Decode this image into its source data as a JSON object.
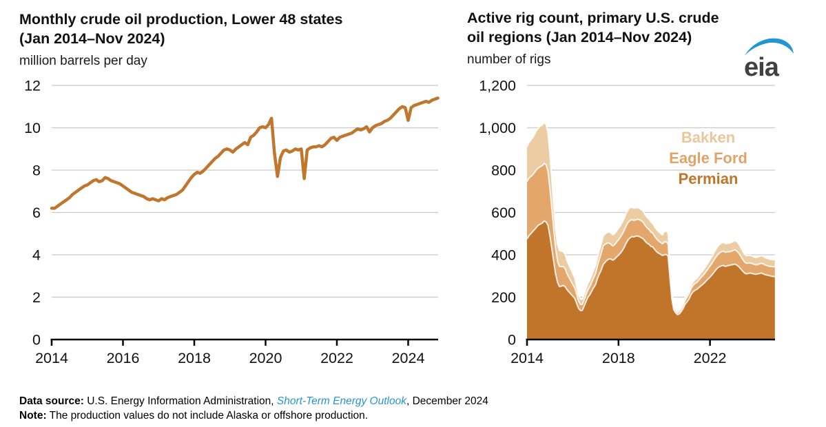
{
  "branding": {
    "logo_text": "eia",
    "logo_text_color": "#414042",
    "swoosh_color": "#2196D3"
  },
  "footer": {
    "source_label": "Data source:",
    "source_body": " U.S. Energy Information Administration, ",
    "source_link": "Short-Term Energy Outlook",
    "source_tail": ", December 2024",
    "link_color": "#2795CE",
    "note_label": "Note:",
    "note_body": " The production values do not include Alaska or offshore production."
  },
  "chart_data": [
    {
      "type": "line",
      "title_line1": "Monthly crude oil production, Lower 48 states",
      "title_line2": "(Jan 2014–Nov 2024)",
      "unit_label": "million barrels per day",
      "x_start_year": 2014,
      "x_end_label": "Nov 2024",
      "xtick_years": [
        2014,
        2016,
        2018,
        2020,
        2022,
        2024
      ],
      "ylim": [
        0,
        12
      ],
      "ytick_values": [
        0,
        2,
        4,
        6,
        8,
        10,
        12
      ],
      "ytick_labels": [
        "0",
        "2",
        "4",
        "6",
        "8",
        "10",
        "12"
      ],
      "grid_color": "#C9C9C9",
      "line_color": "#C0762C",
      "values": [
        6.2,
        6.2,
        6.3,
        6.4,
        6.5,
        6.6,
        6.7,
        6.85,
        6.95,
        7.05,
        7.15,
        7.25,
        7.3,
        7.4,
        7.5,
        7.55,
        7.45,
        7.5,
        7.65,
        7.6,
        7.5,
        7.45,
        7.4,
        7.35,
        7.25,
        7.15,
        7.05,
        6.95,
        6.9,
        6.85,
        6.8,
        6.75,
        6.65,
        6.6,
        6.65,
        6.6,
        6.55,
        6.65,
        6.6,
        6.7,
        6.75,
        6.8,
        6.85,
        6.95,
        7.05,
        7.25,
        7.45,
        7.65,
        7.8,
        7.9,
        7.85,
        7.95,
        8.1,
        8.25,
        8.4,
        8.55,
        8.65,
        8.8,
        8.95,
        9.0,
        8.95,
        8.85,
        9.0,
        9.1,
        9.2,
        9.3,
        9.2,
        9.55,
        9.65,
        9.8,
        10.0,
        10.05,
        10.0,
        10.15,
        10.45,
        8.8,
        7.7,
        8.6,
        8.9,
        8.95,
        8.85,
        8.9,
        9.0,
        8.95,
        9.0,
        7.6,
        8.95,
        9.05,
        9.1,
        9.1,
        9.15,
        9.1,
        9.2,
        9.35,
        9.5,
        9.55,
        9.4,
        9.55,
        9.6,
        9.65,
        9.7,
        9.75,
        9.85,
        9.95,
        9.9,
        9.95,
        10.05,
        9.8,
        10.0,
        10.1,
        10.15,
        10.2,
        10.3,
        10.35,
        10.45,
        10.6,
        10.75,
        10.9,
        11.0,
        10.95,
        10.35,
        10.95,
        11.05,
        11.1,
        11.15,
        11.2,
        11.25,
        11.2,
        11.3,
        11.35,
        11.4
      ]
    },
    {
      "type": "stacked_area",
      "title_line1": "Active rig count, primary U.S. crude",
      "title_line2": "oil regions (Jan 2014–Nov 2024)",
      "unit_label": "number of rigs",
      "x_start_year": 2014,
      "x_end_label": "Nov 2024",
      "xtick_years": [
        2014,
        2018,
        2022
      ],
      "ylim": [
        0,
        1200
      ],
      "ytick_values": [
        0,
        200,
        400,
        600,
        800,
        1000,
        1200
      ],
      "ytick_labels": [
        "0",
        "200",
        "400",
        "600",
        "800",
        "1,000",
        "1,200"
      ],
      "grid_color": "#C9C9C9",
      "series": [
        {
          "name": "Permian",
          "color": "#C0752B",
          "values": [
            475,
            490,
            500,
            510,
            520,
            530,
            540,
            545,
            550,
            560,
            555,
            540,
            490,
            430,
            370,
            310,
            270,
            250,
            252,
            255,
            250,
            235,
            225,
            215,
            205,
            195,
            172,
            148,
            137,
            138,
            158,
            180,
            200,
            212,
            230,
            246,
            260,
            290,
            310,
            330,
            355,
            365,
            375,
            380,
            380,
            375,
            380,
            390,
            398,
            408,
            420,
            435,
            455,
            470,
            480,
            486,
            485,
            488,
            489,
            486,
            481,
            475,
            464,
            455,
            450,
            440,
            437,
            425,
            415,
            408,
            403,
            397,
            400,
            402,
            395,
            290,
            190,
            140,
            126,
            117,
            122,
            133,
            148,
            167,
            179,
            191,
            211,
            224,
            232,
            236,
            244,
            252,
            259,
            267,
            277,
            286,
            295,
            305,
            316,
            328,
            338,
            344,
            348,
            350,
            345,
            348,
            350,
            352,
            354,
            356,
            352,
            345,
            335,
            325,
            315,
            310,
            312,
            314,
            312,
            310,
            308,
            310,
            312,
            314,
            310,
            306,
            304,
            302,
            300,
            298,
            297
          ]
        },
        {
          "name": "Eagle Ford",
          "color": "#E3A76B",
          "values": [
            270,
            272,
            270,
            268,
            270,
            272,
            270,
            272,
            270,
            272,
            270,
            255,
            225,
            190,
            150,
            120,
            100,
            95,
            92,
            90,
            85,
            75,
            68,
            62,
            55,
            50,
            45,
            35,
            29,
            28,
            30,
            33,
            36,
            38,
            42,
            46,
            52,
            60,
            70,
            80,
            88,
            85,
            80,
            76,
            70,
            67,
            68,
            70,
            73,
            76,
            78,
            80,
            82,
            83,
            82,
            80,
            78,
            77,
            79,
            80,
            80,
            78,
            75,
            72,
            70,
            68,
            65,
            62,
            60,
            58,
            56,
            55,
            60,
            60,
            58,
            35,
            20,
            13,
            10,
            10,
            11,
            13,
            16,
            19,
            22,
            25,
            28,
            30,
            32,
            33,
            35,
            38,
            40,
            42,
            45,
            48,
            52,
            55,
            58,
            60,
            62,
            65,
            67,
            68,
            67,
            66,
            65,
            64,
            66,
            68,
            67,
            64,
            60,
            56,
            52,
            50,
            49,
            48,
            47,
            46,
            45,
            44,
            45,
            46,
            47,
            46,
            45,
            44,
            45,
            46,
            46
          ]
        },
        {
          "name": "Bakken",
          "color": "#ECCDA3",
          "values": [
            165,
            168,
            172,
            175,
            180,
            185,
            188,
            190,
            192,
            193,
            190,
            180,
            160,
            135,
            110,
            90,
            78,
            75,
            73,
            70,
            68,
            62,
            58,
            55,
            52,
            45,
            35,
            28,
            25,
            24,
            26,
            28,
            30,
            32,
            34,
            36,
            38,
            40,
            42,
            44,
            46,
            48,
            50,
            52,
            53,
            52,
            52,
            53,
            54,
            55,
            56,
            57,
            58,
            59,
            60,
            58,
            57,
            56,
            55,
            54,
            52,
            52,
            50,
            49,
            48,
            47,
            46,
            45,
            44,
            43,
            42,
            42,
            50,
            51,
            50,
            30,
            15,
            11,
            10,
            10,
            10,
            11,
            12,
            13,
            14,
            15,
            15,
            16,
            17,
            18,
            20,
            22,
            23,
            25,
            27,
            28,
            30,
            32,
            34,
            36,
            38,
            40,
            40,
            41,
            41,
            40,
            40,
            41,
            42,
            43,
            44,
            43,
            41,
            39,
            37,
            36,
            36,
            35,
            35,
            34,
            34,
            35,
            36,
            36,
            35,
            34,
            34,
            34,
            33,
            33,
            33
          ]
        }
      ],
      "legend": [
        {
          "label": "Bakken",
          "color": "#EAC79B"
        },
        {
          "label": "Eagle Ford",
          "color": "#E2A368"
        },
        {
          "label": "Permian",
          "color": "#C0752B"
        }
      ]
    }
  ]
}
